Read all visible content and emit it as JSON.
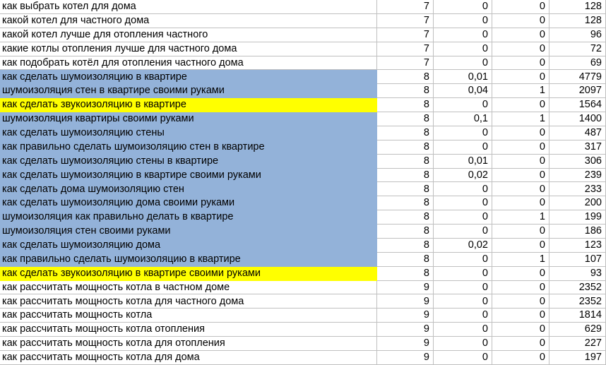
{
  "colors": {
    "highlight_blue": "#93b2d9",
    "highlight_yellow": "#ffff00",
    "gridline": "#c0c0c0",
    "text": "#000000"
  },
  "table": {
    "description": "spreadsheet-keyword-table",
    "rows": [
      {
        "keyword": "как выбрать котел для дома",
        "group": "7",
        "freq": "0",
        "flag": "0",
        "count": "128",
        "highlight": "none"
      },
      {
        "keyword": "какой котел для частного дома",
        "group": "7",
        "freq": "0",
        "flag": "0",
        "count": "128",
        "highlight": "none"
      },
      {
        "keyword": "какой котел лучше для отопления частного",
        "group": "7",
        "freq": "0",
        "flag": "0",
        "count": "96",
        "highlight": "none"
      },
      {
        "keyword": "какие котлы отопления лучше для частного дома",
        "group": "7",
        "freq": "0",
        "flag": "0",
        "count": "72",
        "highlight": "none"
      },
      {
        "keyword": "как подобрать котёл для отопления частного дома",
        "group": "7",
        "freq": "0",
        "flag": "0",
        "count": "69",
        "highlight": "none"
      },
      {
        "keyword": "как сделать шумоизоляцию в квартире",
        "group": "8",
        "freq": "0,01",
        "flag": "0",
        "count": "4779",
        "highlight": "blue"
      },
      {
        "keyword": "шумоизоляция стен в квартире своими руками",
        "group": "8",
        "freq": "0,04",
        "flag": "1",
        "count": "2097",
        "highlight": "blue"
      },
      {
        "keyword": "как сделать звукоизоляцию в квартире",
        "group": "8",
        "freq": "0",
        "flag": "0",
        "count": "1564",
        "highlight": "yellow"
      },
      {
        "keyword": "шумоизоляция квартиры своими руками",
        "group": "8",
        "freq": "0,1",
        "flag": "1",
        "count": "1400",
        "highlight": "blue"
      },
      {
        "keyword": "как сделать шумоизоляцию стены",
        "group": "8",
        "freq": "0",
        "flag": "0",
        "count": "487",
        "highlight": "blue"
      },
      {
        "keyword": "как правильно сделать шумоизоляцию стен в квартире",
        "group": "8",
        "freq": "0",
        "flag": "0",
        "count": "317",
        "highlight": "blue"
      },
      {
        "keyword": "как сделать шумоизоляцию стены в квартире",
        "group": "8",
        "freq": "0,01",
        "flag": "0",
        "count": "306",
        "highlight": "blue"
      },
      {
        "keyword": "как сделать шумоизоляцию в квартире своими руками",
        "group": "8",
        "freq": "0,02",
        "flag": "0",
        "count": "239",
        "highlight": "blue"
      },
      {
        "keyword": "как сделать дома шумоизоляцию стен",
        "group": "8",
        "freq": "0",
        "flag": "0",
        "count": "233",
        "highlight": "blue"
      },
      {
        "keyword": "как сделать шумоизоляцию дома своими руками",
        "group": "8",
        "freq": "0",
        "flag": "0",
        "count": "200",
        "highlight": "blue"
      },
      {
        "keyword": "шумоизоляция как правильно делать в квартире",
        "group": "8",
        "freq": "0",
        "flag": "1",
        "count": "199",
        "highlight": "blue"
      },
      {
        "keyword": "шумоизоляция стен своими руками",
        "group": "8",
        "freq": "0",
        "flag": "0",
        "count": "186",
        "highlight": "blue"
      },
      {
        "keyword": "как сделать шумоизоляцию дома",
        "group": "8",
        "freq": "0,02",
        "flag": "0",
        "count": "123",
        "highlight": "blue"
      },
      {
        "keyword": "как правильно сделать шумоизоляцию в квартире",
        "group": "8",
        "freq": "0",
        "flag": "1",
        "count": "107",
        "highlight": "blue"
      },
      {
        "keyword": "как сделать звукоизоляцию в квартире своими руками",
        "group": "8",
        "freq": "0",
        "flag": "0",
        "count": "93",
        "highlight": "yellow"
      },
      {
        "keyword": "как рассчитать мощность котла в частном доме",
        "group": "9",
        "freq": "0",
        "flag": "0",
        "count": "2352",
        "highlight": "none"
      },
      {
        "keyword": "как рассчитать мощность котла для частного дома",
        "group": "9",
        "freq": "0",
        "flag": "0",
        "count": "2352",
        "highlight": "none"
      },
      {
        "keyword": "как рассчитать мощность котла",
        "group": "9",
        "freq": "0",
        "flag": "0",
        "count": "1814",
        "highlight": "none"
      },
      {
        "keyword": "как рассчитать мощность котла отопления",
        "group": "9",
        "freq": "0",
        "flag": "0",
        "count": "629",
        "highlight": "none"
      },
      {
        "keyword": "как рассчитать мощность котла для отопления",
        "group": "9",
        "freq": "0",
        "flag": "0",
        "count": "227",
        "highlight": "none"
      },
      {
        "keyword": "как рассчитать мощность котла для дома",
        "group": "9",
        "freq": "0",
        "flag": "0",
        "count": "197",
        "highlight": "none"
      }
    ]
  }
}
